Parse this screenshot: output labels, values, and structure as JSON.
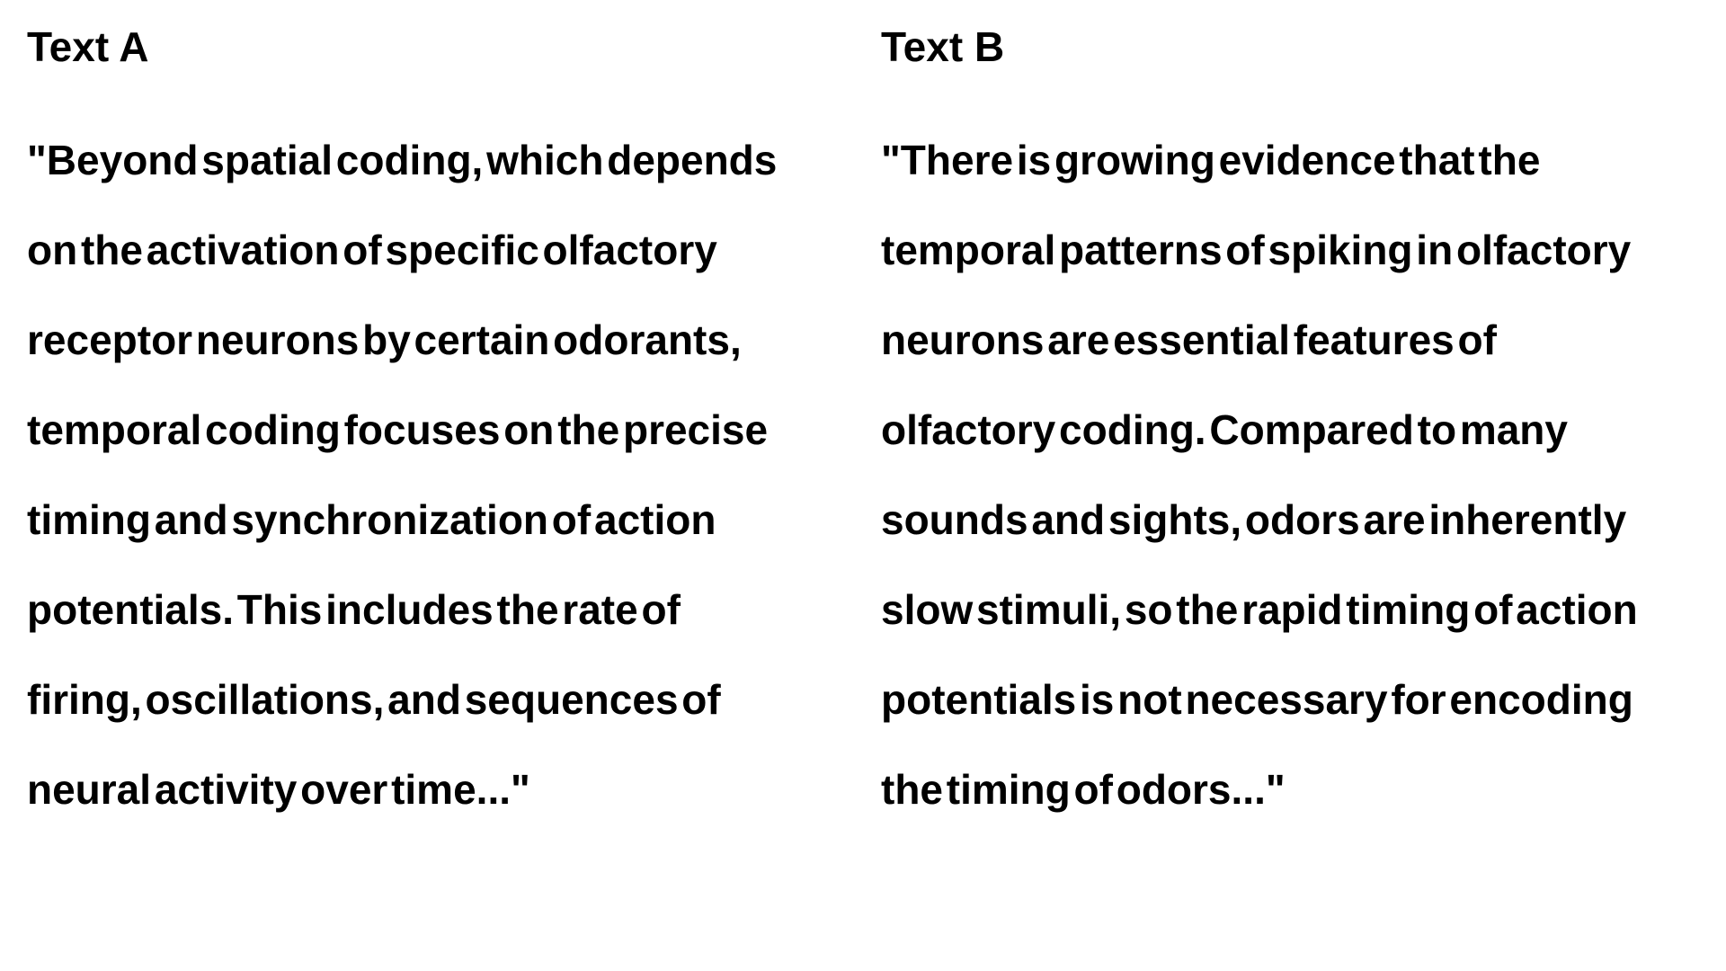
{
  "text_a": {
    "heading": "Text A",
    "lines": [
      "\"Beyond spatial coding, which depends",
      "on the activation of specific olfactory",
      "receptor neurons by certain odorants,",
      "temporal coding focuses on the precise",
      "timing and synchronization of action",
      "potentials. This includes the rate of",
      "firing, oscillations, and sequences of",
      "neural activity over time...\""
    ]
  },
  "text_b": {
    "heading": "Text B",
    "lines": [
      "\"There is growing evidence that the",
      "temporal patterns of spiking in olfactory",
      "neurons are essential features of",
      "olfactory coding. Compared to many",
      "sounds and sights, odors are inherently",
      "slow stimuli, so the rapid timing of action",
      "potentials is not necessary for encoding",
      "the timing of odors...\""
    ]
  }
}
